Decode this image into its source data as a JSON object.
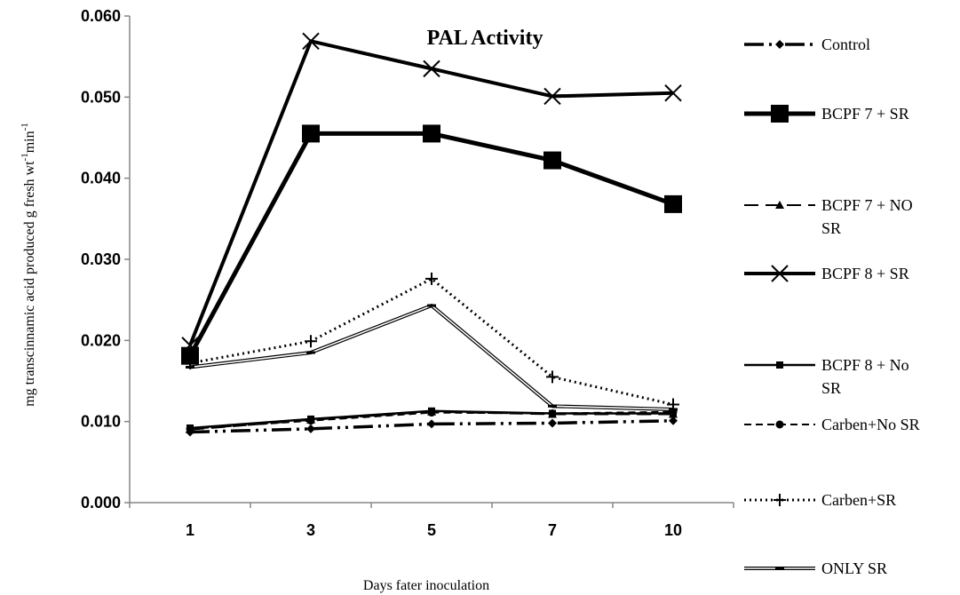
{
  "chart_data": {
    "type": "line",
    "title": "PAL Activity",
    "xlabel": "Days fater inoculation",
    "ylabel_main": "mg transcinnamic acid produced g fresh wt",
    "ylabel_sup1": "-1",
    "ylabel_mid": "min",
    "ylabel_sup2": "-1",
    "categories": [
      "1",
      "3",
      "5",
      "7",
      "10"
    ],
    "ylim": [
      0,
      0.06
    ],
    "yticks": [
      "0.000",
      "0.010",
      "0.020",
      "0.030",
      "0.040",
      "0.050",
      "0.060"
    ],
    "ytick_values": [
      0,
      0.01,
      0.02,
      0.03,
      0.04,
      0.05,
      0.06
    ],
    "legend_position": "right",
    "series": [
      {
        "name": "Control",
        "values": [
          0.0087,
          0.0091,
          0.0097,
          0.0098,
          0.0101
        ],
        "dash": "22,6,3,6,3,6",
        "width": 3.5,
        "marker": "diamond",
        "double": false
      },
      {
        "name": "BCPF 7 + SR",
        "values": [
          0.0181,
          0.0455,
          0.0455,
          0.0422,
          0.0368
        ],
        "dash": "",
        "width": 5,
        "marker": "square-big",
        "double": false
      },
      {
        "name": "BCPF 7 + NO SR",
        "values": [
          0.009,
          0.0102,
          0.0112,
          0.0109,
          0.0109
        ],
        "dash": "16,8",
        "width": 2,
        "marker": "triangle",
        "double": false
      },
      {
        "name": "BCPF 8 + SR",
        "values": [
          0.0194,
          0.0569,
          0.0535,
          0.0501,
          0.0505
        ],
        "dash": "",
        "width": 4,
        "marker": "x",
        "double": false
      },
      {
        "name": "BCPF 8 + No SR",
        "values": [
          0.0092,
          0.0103,
          0.0113,
          0.011,
          0.011
        ],
        "dash": "",
        "width": 2.5,
        "marker": "square-small",
        "double": false
      },
      {
        "name": "Carben+No SR",
        "values": [
          0.0091,
          0.0101,
          0.0111,
          0.011,
          0.0112
        ],
        "dash": "8,5",
        "width": 2,
        "marker": "circle",
        "double": false
      },
      {
        "name": "Carben+SR",
        "values": [
          0.0172,
          0.0199,
          0.0276,
          0.0155,
          0.0121
        ],
        "dash": "2,4",
        "width": 3,
        "marker": "plus",
        "double": false
      },
      {
        "name": "ONLY SR",
        "values": [
          0.0167,
          0.0185,
          0.0243,
          0.0119,
          0.0115
        ],
        "dash": "",
        "width": 1,
        "marker": "dash",
        "double": true
      }
    ]
  }
}
